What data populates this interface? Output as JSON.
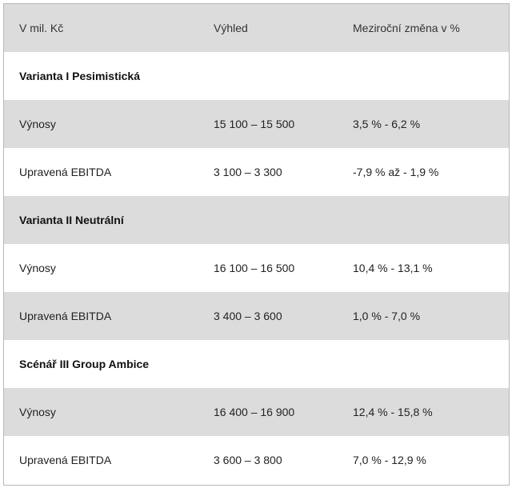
{
  "table": {
    "headers": [
      "V mil. Kč",
      "Výhled",
      "Meziroční změna v %"
    ],
    "sections": [
      {
        "title": "Varianta I Pesimistická",
        "rows": [
          {
            "label": "Výnosy",
            "outlook": "15 100 – 15 500",
            "change": "3,5 % - 6,2 %"
          },
          {
            "label": "Upravená EBITDA",
            "outlook": "3 100 – 3 300",
            "change": "-7,9 % až - 1,9 %"
          }
        ]
      },
      {
        "title": "Varianta II Neutrální",
        "rows": [
          {
            "label": "Výnosy",
            "outlook": "16 100 – 16 500",
            "change": "10,4 % - 13,1 %"
          },
          {
            "label": "Upravená EBITDA",
            "outlook": "3 400 – 3 600",
            "change": "1,0 % - 7,0 %"
          }
        ]
      },
      {
        "title": "Scénář III Group Ambice",
        "rows": [
          {
            "label": "Výnosy",
            "outlook": "16 400 – 16 900",
            "change": "12,4 % - 15,8 %"
          },
          {
            "label": "Upravená EBITDA",
            "outlook": "3 600 – 3 800",
            "change": "7,0 % - 12,9 %"
          }
        ]
      }
    ]
  }
}
